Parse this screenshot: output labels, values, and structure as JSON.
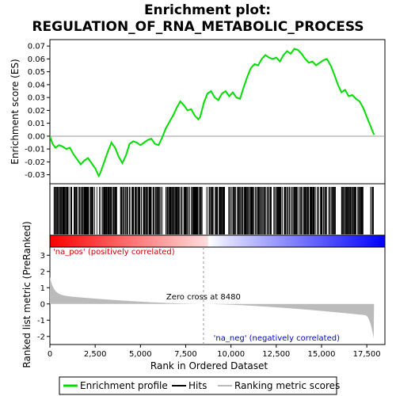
{
  "chart_data": {
    "type": "line",
    "title_line1": "Enrichment plot:",
    "title_line2": "REGULATION_OF_RNA_METABOLIC_PROCESS",
    "xlabel": "Rank in Ordered Dataset",
    "ylabel_top": "Enrichment score (ES)",
    "ylabel_bottom": "Ranked list metric (PreRanked)",
    "xlim": [
      0,
      18500
    ],
    "x_ticks": [
      0,
      2500,
      5000,
      7500,
      10000,
      12500,
      15000,
      17500
    ],
    "x_tick_labels": [
      "0",
      "2,500",
      "5,000",
      "7,500",
      "10,000",
      "12,500",
      "15,000",
      "17,500"
    ],
    "es_ylim": [
      -0.037,
      0.075
    ],
    "es_ticks": [
      -0.03,
      -0.02,
      -0.01,
      0.0,
      0.01,
      0.02,
      0.03,
      0.04,
      0.05,
      0.06,
      0.07
    ],
    "es_tick_labels": [
      "-0.03",
      "-0.02",
      "-0.01",
      "0.00",
      "0.01",
      "0.02",
      "0.03",
      "0.04",
      "0.05",
      "0.06",
      "0.07"
    ],
    "metric_ylim": [
      -2.5,
      3.5
    ],
    "metric_ticks": [
      -2,
      -1,
      0,
      1,
      2,
      3
    ],
    "metric_tick_labels": [
      "-2",
      "-1",
      "0",
      "1",
      "2",
      "3"
    ],
    "zero_cross": 8480,
    "zero_cross_label": "Zero cross at 8480",
    "pos_label": "'na_pos' (positively correlated)",
    "neg_label": "'na_neg' (negatively correlated)",
    "n_genes": 17900,
    "series": [
      {
        "name": "Enrichment profile",
        "color": "#00dd00",
        "x": [
          0,
          150,
          300,
          500,
          700,
          900,
          1100,
          1300,
          1500,
          1700,
          1900,
          2100,
          2300,
          2500,
          2700,
          2800,
          3000,
          3200,
          3400,
          3600,
          3800,
          4000,
          4200,
          4400,
          4600,
          4800,
          5000,
          5200,
          5400,
          5600,
          5800,
          6000,
          6200,
          6400,
          6600,
          6800,
          7000,
          7200,
          7400,
          7600,
          7800,
          8000,
          8200,
          8300,
          8500,
          8700,
          8900,
          9100,
          9300,
          9500,
          9700,
          9900,
          10100,
          10300,
          10500,
          10700,
          10900,
          11100,
          11300,
          11500,
          11700,
          11900,
          12100,
          12300,
          12500,
          12700,
          12900,
          13100,
          13300,
          13500,
          13700,
          13900,
          14100,
          14300,
          14500,
          14700,
          14900,
          15100,
          15300,
          15500,
          15700,
          15900,
          16100,
          16300,
          16500,
          16700,
          16900,
          17100,
          17300,
          17500,
          17700,
          17900
        ],
        "y": [
          0.0,
          -0.006,
          -0.009,
          -0.007,
          -0.008,
          -0.01,
          -0.009,
          -0.014,
          -0.018,
          -0.022,
          -0.019,
          -0.017,
          -0.021,
          -0.025,
          -0.031,
          -0.028,
          -0.02,
          -0.012,
          -0.005,
          -0.009,
          -0.016,
          -0.021,
          -0.015,
          -0.006,
          -0.004,
          -0.005,
          -0.007,
          -0.005,
          -0.003,
          -0.002,
          -0.006,
          -0.007,
          -0.001,
          0.006,
          0.011,
          0.016,
          0.022,
          0.027,
          0.024,
          0.02,
          0.021,
          0.016,
          0.013,
          0.015,
          0.026,
          0.033,
          0.035,
          0.03,
          0.028,
          0.033,
          0.035,
          0.031,
          0.034,
          0.03,
          0.029,
          0.038,
          0.046,
          0.053,
          0.056,
          0.055,
          0.06,
          0.063,
          0.061,
          0.06,
          0.061,
          0.058,
          0.063,
          0.066,
          0.064,
          0.068,
          0.067,
          0.064,
          0.06,
          0.057,
          0.058,
          0.055,
          0.057,
          0.059,
          0.06,
          0.055,
          0.048,
          0.04,
          0.034,
          0.036,
          0.031,
          0.032,
          0.029,
          0.027,
          0.022,
          0.015,
          0.008,
          0.001
        ]
      }
    ],
    "legend": {
      "placement": "bottom",
      "items": [
        {
          "label": "Enrichment profile",
          "color": "#00dd00"
        },
        {
          "label": "Hits",
          "color": "#000000"
        },
        {
          "label": "Ranking metric scores",
          "color": "#bbbbbb"
        }
      ]
    },
    "colors": {
      "es_line": "#00dd00",
      "hits": "#000000",
      "metric_fill": "#bbbbbb",
      "zero_line": "#999999",
      "pos_text": "#cc0000",
      "neg_text": "#0000cc",
      "bar_pos": "#ff0000",
      "bar_neg": "#0000ff"
    }
  }
}
